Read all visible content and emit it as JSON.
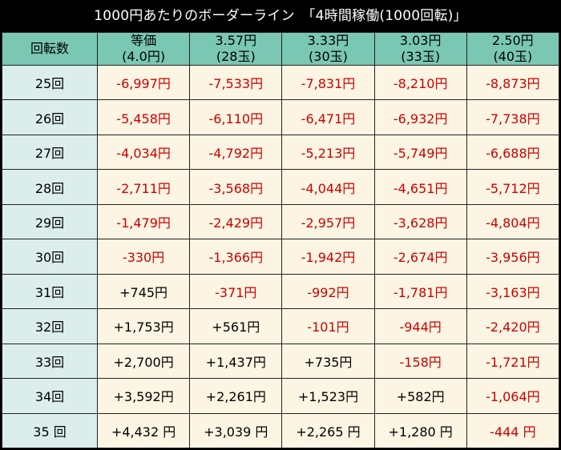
{
  "title": "1000円あたりのボーダーライン　「4時間稼働(1000回転)」",
  "header": {
    "first": "回転数",
    "columns": [
      {
        "line1": "等価",
        "line2": "(4.0円)"
      },
      {
        "line1": "3.57円",
        "line2": "(28玉)"
      },
      {
        "line1": "3.33円",
        "line2": "(30玉)"
      },
      {
        "line1": "3.03円",
        "line2": "(33玉)"
      },
      {
        "line1": "2.50円",
        "line2": "(40玉)"
      }
    ]
  },
  "rows": [
    {
      "label": "25回",
      "cells": [
        {
          "v": "-6,997円",
          "neg": true
        },
        {
          "v": "-7,533円",
          "neg": true
        },
        {
          "v": "-7,831円",
          "neg": true
        },
        {
          "v": "-8,210円",
          "neg": true
        },
        {
          "v": "-8,873円",
          "neg": true
        }
      ]
    },
    {
      "label": "26回",
      "cells": [
        {
          "v": "-5,458円",
          "neg": true
        },
        {
          "v": "-6,110円",
          "neg": true
        },
        {
          "v": "-6,471円",
          "neg": true
        },
        {
          "v": "-6,932円",
          "neg": true
        },
        {
          "v": "-7,738円",
          "neg": true
        }
      ]
    },
    {
      "label": "27回",
      "cells": [
        {
          "v": "-4,034円",
          "neg": true
        },
        {
          "v": "-4,792円",
          "neg": true
        },
        {
          "v": "-5,213円",
          "neg": true
        },
        {
          "v": "-5,749円",
          "neg": true
        },
        {
          "v": "-6,688円",
          "neg": true
        }
      ]
    },
    {
      "label": "28回",
      "cells": [
        {
          "v": "-2,711円",
          "neg": true
        },
        {
          "v": "-3,568円",
          "neg": true
        },
        {
          "v": "-4,044円",
          "neg": true
        },
        {
          "v": "-4,651円",
          "neg": true
        },
        {
          "v": "-5,712円",
          "neg": true
        }
      ]
    },
    {
      "label": "29回",
      "cells": [
        {
          "v": "-1,479円",
          "neg": true
        },
        {
          "v": "-2,429円",
          "neg": true
        },
        {
          "v": "-2,957円",
          "neg": true
        },
        {
          "v": "-3,628円",
          "neg": true
        },
        {
          "v": "-4,804円",
          "neg": true
        }
      ]
    },
    {
      "label": "30回",
      "cells": [
        {
          "v": "-330円",
          "neg": true
        },
        {
          "v": "-1,366円",
          "neg": true
        },
        {
          "v": "-1,942円",
          "neg": true
        },
        {
          "v": "-2,674円",
          "neg": true
        },
        {
          "v": "-3,956円",
          "neg": true
        }
      ]
    },
    {
      "label": "31回",
      "cells": [
        {
          "v": "+745円",
          "neg": false
        },
        {
          "v": "-371円",
          "neg": true
        },
        {
          "v": "-992円",
          "neg": true
        },
        {
          "v": "-1,781円",
          "neg": true
        },
        {
          "v": "-3,163円",
          "neg": true
        }
      ]
    },
    {
      "label": "32回",
      "cells": [
        {
          "v": "+1,753円",
          "neg": false
        },
        {
          "v": "+561円",
          "neg": false
        },
        {
          "v": "-101円",
          "neg": true
        },
        {
          "v": "-944円",
          "neg": true
        },
        {
          "v": "-2,420円",
          "neg": true
        }
      ]
    },
    {
      "label": "33回",
      "cells": [
        {
          "v": "+2,700円",
          "neg": false
        },
        {
          "v": "+1,437円",
          "neg": false
        },
        {
          "v": "+735円",
          "neg": false
        },
        {
          "v": "-158円",
          "neg": true
        },
        {
          "v": "-1,721円",
          "neg": true
        }
      ]
    },
    {
      "label": "34回",
      "cells": [
        {
          "v": "+3,592円",
          "neg": false
        },
        {
          "v": "+2,261円",
          "neg": false
        },
        {
          "v": "+1,523円",
          "neg": false
        },
        {
          "v": "+582円",
          "neg": false
        },
        {
          "v": "-1,064円",
          "neg": true
        }
      ]
    },
    {
      "label": "35 回",
      "cells": [
        {
          "v": "+4,432 円",
          "neg": false
        },
        {
          "v": "+3,039 円",
          "neg": false
        },
        {
          "v": "+2,265 円",
          "neg": false
        },
        {
          "v": "+1,280 円",
          "neg": false
        },
        {
          "v": "-444 円",
          "neg": true
        }
      ]
    }
  ],
  "colors": {
    "header_bg": "#7ac7b3",
    "row_label_bg": "#dbeeeb",
    "cell_bg": "#fdf5e3",
    "negative": "#cc0000",
    "title_bg": "#000000"
  }
}
